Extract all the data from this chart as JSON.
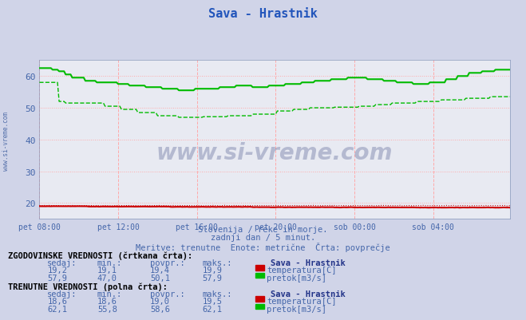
{
  "title": "Sava - Hrastnik",
  "title_color": "#2255bb",
  "bg_color": "#d0d4e8",
  "plot_bg_color": "#e8eaf2",
  "watermark": "www.si-vreme.com",
  "subtitle1": "Slovenija / reke in morje.",
  "subtitle2": "zadnji dan / 5 minut.",
  "subtitle3": "Meritve: trenutne  Enote: metrične  Črta: povprečje",
  "xlabel_color": "#4466aa",
  "ylabel_color": "#4466aa",
  "text_color": "#4466aa",
  "x_labels": [
    "pet 08:00",
    "pet 12:00",
    "pet 16:00",
    "pet 20:00",
    "sob 00:00",
    "sob 04:00"
  ],
  "x_tick_positions": [
    0,
    48,
    96,
    144,
    192,
    240
  ],
  "ylim": [
    15,
    65
  ],
  "yticks": [
    20,
    30,
    40,
    50,
    60
  ],
  "num_points": 288,
  "temp_color": "#cc0000",
  "flow_color": "#00bb00",
  "grid_color": "#ffaaaa",
  "legend_hist": "ZGODOVINSKE VREDNOSTI (črtkana črta):",
  "legend_curr": "TRENUTNE VREDNOSTI (polna črta):",
  "stat_headers": [
    "sedaj:",
    "min.:",
    "povpr.:",
    "maks.:"
  ],
  "hist_temp_stats": [
    "19,2",
    "19,1",
    "19,4",
    "19,9"
  ],
  "hist_flow_stats": [
    "57,9",
    "47,0",
    "50,1",
    "57,9"
  ],
  "curr_temp_stats": [
    "18,6",
    "18,6",
    "19,0",
    "19,5"
  ],
  "curr_flow_stats": [
    "62,1",
    "55,8",
    "58,6",
    "62,1"
  ],
  "station_label": "Sava - Hrastnik",
  "temp_label": "temperatura[C]",
  "flow_label": "pretok[m3/s]"
}
